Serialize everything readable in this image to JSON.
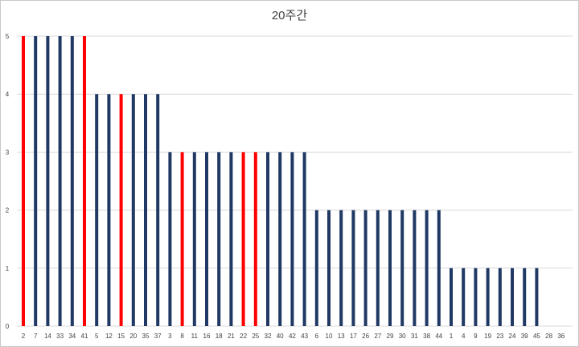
{
  "chart_data": {
    "type": "bar",
    "title": "20주간",
    "xlabel": "",
    "ylabel": "",
    "ylim": [
      0,
      5
    ],
    "yticks": [
      "0",
      "1",
      "2",
      "3",
      "4",
      "5"
    ],
    "grid": "horizontal",
    "categories": [
      "2",
      "7",
      "14",
      "33",
      "34",
      "41",
      "5",
      "12",
      "15",
      "20",
      "35",
      "37",
      "3",
      "8",
      "11",
      "16",
      "18",
      "21",
      "22",
      "25",
      "32",
      "40",
      "42",
      "43",
      "6",
      "10",
      "13",
      "17",
      "26",
      "27",
      "29",
      "30",
      "31",
      "38",
      "44",
      "1",
      "4",
      "9",
      "19",
      "23",
      "24",
      "39",
      "45",
      "28",
      "36"
    ],
    "values": [
      5,
      5,
      5,
      5,
      5,
      5,
      4,
      4,
      4,
      4,
      4,
      4,
      3,
      3,
      3,
      3,
      3,
      3,
      3,
      3,
      3,
      3,
      3,
      3,
      2,
      2,
      2,
      2,
      2,
      2,
      2,
      2,
      2,
      2,
      2,
      1,
      1,
      1,
      1,
      1,
      1,
      1,
      1,
      0,
      0
    ],
    "highlighted": [
      "2",
      "41",
      "15",
      "8",
      "22",
      "25"
    ],
    "colors": {
      "default": "#1f3864",
      "highlight": "#ff0000",
      "grid": "#d9d9d9"
    }
  }
}
